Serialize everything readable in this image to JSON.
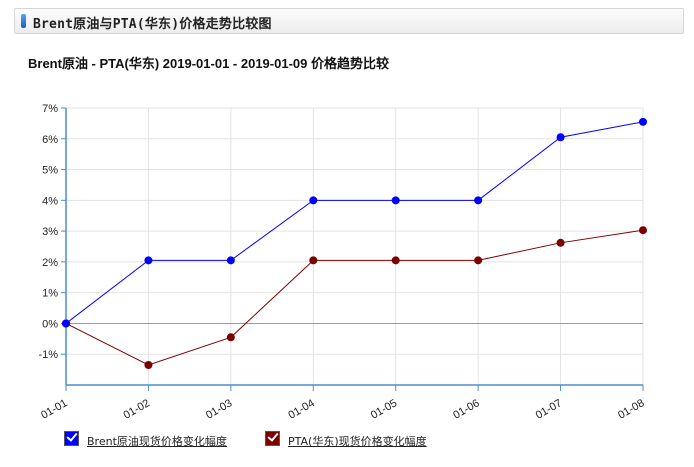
{
  "header": {
    "title": "Brent原油与PTA(华东)价格走势比较图"
  },
  "chart_data": {
    "type": "line",
    "title": "Brent原油 - PTA(华东) 2019-01-01 - 2019-01-09 价格趋势比较",
    "categories": [
      "01-01",
      "01-02",
      "01-03",
      "01-04",
      "01-05",
      "01-06",
      "01-07",
      "01-08"
    ],
    "yticks": [
      "7%",
      "6%",
      "5%",
      "4%",
      "3%",
      "2%",
      "1%",
      "0%",
      "-1%"
    ],
    "ylim": [
      -2,
      7
    ],
    "grid": true,
    "legend_position": "bottom-left",
    "series": [
      {
        "name": "Brent原油现货价格变化幅度",
        "color": "#0000ff",
        "values": [
          0,
          2.05,
          2.05,
          4.0,
          4.0,
          4.0,
          6.05,
          6.55
        ]
      },
      {
        "name": "PTA(华东)现货价格变化幅度",
        "color": "#7b0000",
        "values": [
          0,
          -1.35,
          -0.45,
          2.05,
          2.05,
          2.05,
          2.62,
          3.03
        ]
      }
    ]
  }
}
